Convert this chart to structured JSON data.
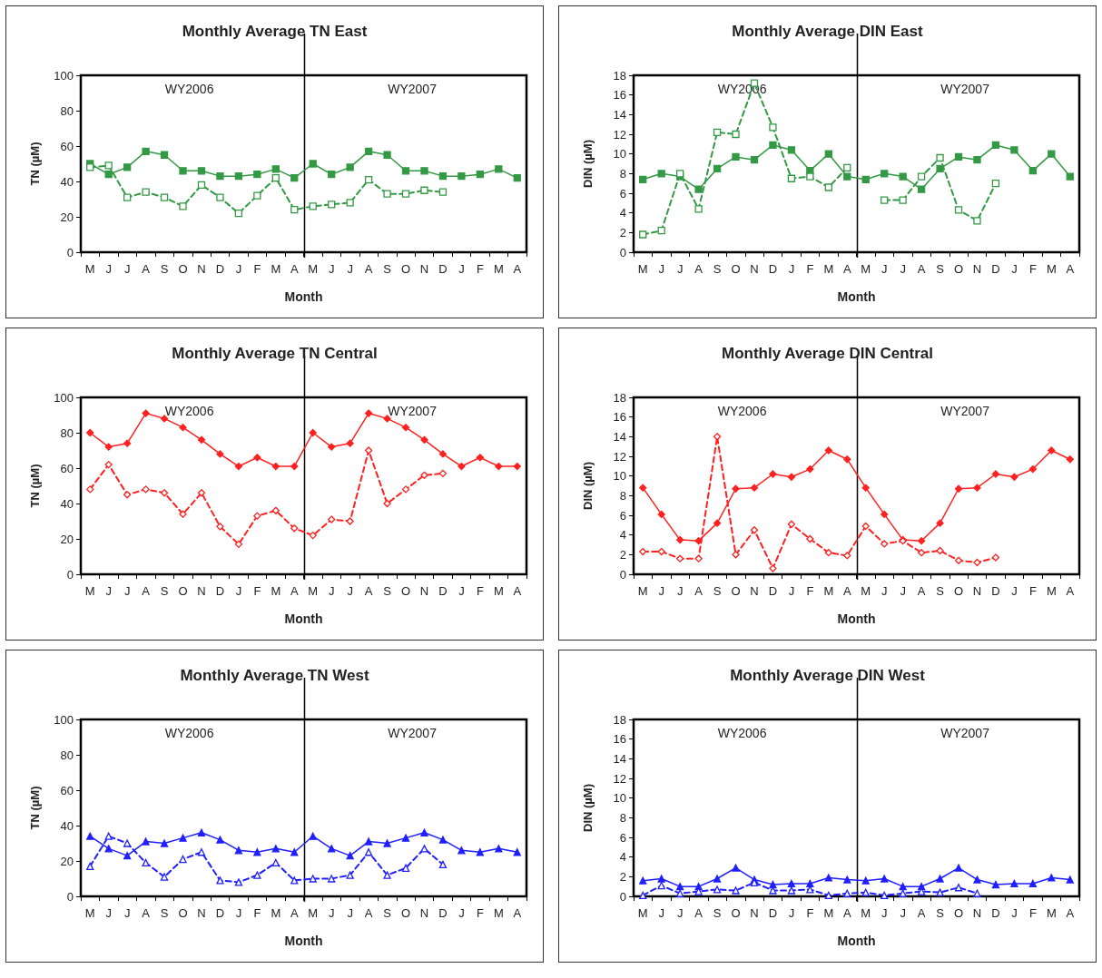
{
  "chart_data": [
    {
      "type": "line",
      "title": "Monthly Average TN East",
      "xlabel": "Month",
      "ylabel": "TN (µM)",
      "categories": [
        "M",
        "J",
        "J",
        "A",
        "S",
        "O",
        "N",
        "D",
        "J",
        "F",
        "M",
        "A",
        "M",
        "J",
        "J",
        "A",
        "S",
        "O",
        "N",
        "D",
        "J",
        "F",
        "M",
        "A"
      ],
      "ylim": [
        0,
        100
      ],
      "yticks": [
        0,
        20,
        40,
        60,
        80,
        100
      ],
      "marker": "square",
      "series": [
        {
          "color": "#339944",
          "line_style": "solid",
          "values": [
            50,
            44,
            48,
            57,
            55,
            46,
            46,
            43,
            43,
            44,
            47,
            42,
            50,
            44,
            48,
            57,
            55,
            46,
            46,
            43,
            43,
            44,
            47,
            42
          ]
        },
        {
          "color": "#339944",
          "line_style": "dashed",
          "values": [
            48,
            49,
            31,
            34,
            31,
            26,
            38,
            31,
            22,
            32,
            42,
            24,
            26,
            27,
            28,
            41,
            33,
            33,
            35,
            34,
            null,
            null,
            null,
            null
          ]
        }
      ],
      "annotations": [
        "WY2006",
        "WY2007"
      ]
    },
    {
      "type": "line",
      "title": "Monthly Average DIN East",
      "xlabel": "Month",
      "ylabel": "DIN (µM)",
      "categories": [
        "M",
        "J",
        "J",
        "A",
        "S",
        "O",
        "N",
        "D",
        "J",
        "F",
        "M",
        "A",
        "M",
        "J",
        "J",
        "A",
        "S",
        "O",
        "N",
        "D",
        "J",
        "F",
        "M",
        "A"
      ],
      "ylim": [
        0,
        18
      ],
      "yticks": [
        0,
        2,
        4,
        6,
        8,
        10,
        12,
        14,
        16,
        18
      ],
      "marker": "square",
      "series": [
        {
          "color": "#339944",
          "line_style": "solid",
          "values": [
            7.4,
            8.0,
            7.7,
            6.4,
            8.5,
            9.7,
            9.4,
            10.9,
            10.4,
            8.3,
            10.0,
            7.7,
            7.4,
            8.0,
            7.7,
            6.4,
            8.5,
            9.7,
            9.4,
            10.9,
            10.4,
            8.3,
            10.0,
            7.7
          ]
        },
        {
          "color": "#339944",
          "line_style": "dashed",
          "values": [
            1.8,
            2.2,
            8.0,
            4.4,
            12.2,
            12.0,
            17.2,
            12.7,
            7.5,
            7.7,
            6.6,
            8.6,
            null,
            5.3,
            5.3,
            7.7,
            9.6,
            4.3,
            3.2,
            7.0,
            null,
            null,
            null,
            null
          ]
        }
      ],
      "annotations": [
        "WY2006",
        "WY2007"
      ]
    },
    {
      "type": "line",
      "title": "Monthly Average TN Central",
      "xlabel": "Month",
      "ylabel": "TN (µM)",
      "categories": [
        "M",
        "J",
        "J",
        "A",
        "S",
        "O",
        "N",
        "D",
        "J",
        "F",
        "M",
        "A",
        "M",
        "J",
        "J",
        "A",
        "S",
        "O",
        "N",
        "D",
        "J",
        "F",
        "M",
        "A"
      ],
      "ylim": [
        0,
        100
      ],
      "yticks": [
        0,
        20,
        40,
        60,
        80,
        100
      ],
      "marker": "diamond",
      "series": [
        {
          "color": "#ff2020",
          "line_style": "solid",
          "values": [
            80,
            72,
            74,
            91,
            88,
            83,
            76,
            68,
            61,
            66,
            61,
            61,
            80,
            72,
            74,
            91,
            88,
            83,
            76,
            68,
            61,
            66,
            61,
            61
          ]
        },
        {
          "color": "#ff2020",
          "line_style": "dashed",
          "values": [
            48,
            62,
            45,
            48,
            46,
            34,
            46,
            27,
            17,
            33,
            36,
            26,
            22,
            31,
            30,
            70,
            40,
            48,
            56,
            57,
            null,
            null,
            null,
            null
          ]
        }
      ],
      "annotations": [
        "WY2006",
        "WY2007"
      ]
    },
    {
      "type": "line",
      "title": "Monthly Average DIN Central",
      "xlabel": "Month",
      "ylabel": "DIN (µM)",
      "categories": [
        "M",
        "J",
        "J",
        "A",
        "S",
        "O",
        "N",
        "D",
        "J",
        "F",
        "M",
        "A",
        "M",
        "J",
        "J",
        "A",
        "S",
        "O",
        "N",
        "D",
        "J",
        "F",
        "M",
        "A"
      ],
      "ylim": [
        0,
        18
      ],
      "yticks": [
        0,
        2,
        4,
        6,
        8,
        10,
        12,
        14,
        16,
        18
      ],
      "marker": "diamond",
      "series": [
        {
          "color": "#ff2020",
          "line_style": "solid",
          "values": [
            8.8,
            6.1,
            3.5,
            3.4,
            5.2,
            8.7,
            8.8,
            10.2,
            9.9,
            10.7,
            12.6,
            11.7,
            8.8,
            6.1,
            3.5,
            3.4,
            5.2,
            8.7,
            8.8,
            10.2,
            9.9,
            10.7,
            12.6,
            11.7
          ]
        },
        {
          "color": "#ff2020",
          "line_style": "dashed",
          "values": [
            2.3,
            2.3,
            1.6,
            1.6,
            14.0,
            2.0,
            4.5,
            0.6,
            5.1,
            3.6,
            2.2,
            1.9,
            4.9,
            3.1,
            3.4,
            2.2,
            2.4,
            1.4,
            1.2,
            1.7,
            null,
            null,
            null,
            null
          ]
        }
      ],
      "annotations": [
        "WY2006",
        "WY2007"
      ]
    },
    {
      "type": "line",
      "title": "Monthly Average TN West",
      "xlabel": "Month",
      "ylabel": "TN (µM)",
      "categories": [
        "M",
        "J",
        "J",
        "A",
        "S",
        "O",
        "N",
        "D",
        "J",
        "F",
        "M",
        "A",
        "M",
        "J",
        "J",
        "A",
        "S",
        "O",
        "N",
        "D",
        "J",
        "F",
        "M",
        "A"
      ],
      "ylim": [
        0,
        100
      ],
      "yticks": [
        0,
        20,
        40,
        60,
        80,
        100
      ],
      "marker": "triangle",
      "series": [
        {
          "color": "#1f1fff",
          "line_style": "solid",
          "values": [
            34,
            27,
            23,
            31,
            30,
            33,
            36,
            32,
            26,
            25,
            27,
            25,
            34,
            27,
            23,
            31,
            30,
            33,
            36,
            32,
            26,
            25,
            27,
            25
          ]
        },
        {
          "color": "#1f1fff",
          "line_style": "dashed",
          "values": [
            17,
            34,
            30,
            19,
            11,
            21,
            25,
            9,
            8,
            12,
            19,
            9,
            10,
            10,
            12,
            25,
            12,
            16,
            27,
            18,
            null,
            null,
            null,
            null
          ]
        }
      ],
      "annotations": [
        "WY2006",
        "WY2007"
      ]
    },
    {
      "type": "line",
      "title": "Monthly Average DIN West",
      "xlabel": "Month",
      "ylabel": "DIN (µM)",
      "categories": [
        "M",
        "J",
        "J",
        "A",
        "S",
        "O",
        "N",
        "D",
        "J",
        "F",
        "M",
        "A",
        "M",
        "J",
        "J",
        "A",
        "S",
        "O",
        "N",
        "D",
        "J",
        "F",
        "M",
        "A"
      ],
      "ylim": [
        0,
        18
      ],
      "yticks": [
        0,
        2,
        4,
        6,
        8,
        10,
        12,
        14,
        16,
        18
      ],
      "marker": "triangle",
      "series": [
        {
          "color": "#1f1fff",
          "line_style": "solid",
          "values": [
            1.6,
            1.8,
            1.0,
            1.0,
            1.8,
            2.9,
            1.7,
            1.2,
            1.3,
            1.3,
            1.9,
            1.7,
            1.6,
            1.8,
            1.0,
            1.0,
            1.8,
            2.9,
            1.7,
            1.2,
            1.3,
            1.3,
            1.9,
            1.7
          ]
        },
        {
          "color": "#1f1fff",
          "line_style": "dashed",
          "values": [
            0.1,
            1.1,
            0.3,
            0.5,
            0.7,
            0.6,
            1.4,
            0.6,
            0.6,
            0.7,
            0.1,
            0.3,
            0.4,
            0.1,
            0.3,
            0.5,
            0.4,
            0.9,
            0.3,
            null,
            null,
            null,
            null,
            null
          ]
        }
      ],
      "annotations": [
        "WY2006",
        "WY2007"
      ]
    }
  ]
}
